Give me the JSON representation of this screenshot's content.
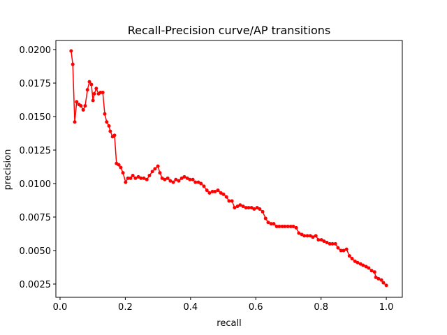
{
  "chart_data": {
    "type": "line",
    "title": "Recall-Precision curve/AP transitions",
    "x_label": "recall",
    "y_label": "precision",
    "series": [
      {
        "color": "#ff0000",
        "x": [
          0.034,
          0.039,
          0.045,
          0.051,
          0.058,
          0.064,
          0.071,
          0.077,
          0.084,
          0.09,
          0.096,
          0.101,
          0.105,
          0.111,
          0.118,
          0.124,
          0.131,
          0.137,
          0.143,
          0.15,
          0.154,
          0.161,
          0.167,
          0.173,
          0.18,
          0.186,
          0.193,
          0.201,
          0.208,
          0.216,
          0.223,
          0.231,
          0.24,
          0.248,
          0.257,
          0.266,
          0.274,
          0.283,
          0.291,
          0.3,
          0.306,
          0.313,
          0.321,
          0.33,
          0.338,
          0.347,
          0.355,
          0.364,
          0.373,
          0.381,
          0.39,
          0.398,
          0.407,
          0.415,
          0.424,
          0.432,
          0.441,
          0.45,
          0.458,
          0.467,
          0.475,
          0.484,
          0.493,
          0.501,
          0.51,
          0.518,
          0.527,
          0.535,
          0.544,
          0.552,
          0.561,
          0.57,
          0.578,
          0.587,
          0.595,
          0.604,
          0.612,
          0.621,
          0.63,
          0.638,
          0.647,
          0.655,
          0.664,
          0.672,
          0.681,
          0.689,
          0.698,
          0.707,
          0.715,
          0.724,
          0.732,
          0.741,
          0.749,
          0.758,
          0.767,
          0.775,
          0.784,
          0.792,
          0.801,
          0.809,
          0.818,
          0.827,
          0.835,
          0.844,
          0.852,
          0.861,
          0.869,
          0.878,
          0.887,
          0.895,
          0.904,
          0.912,
          0.921,
          0.929,
          0.938,
          0.946,
          0.955,
          0.964,
          0.968,
          0.976,
          0.985,
          0.991,
          1.0
        ],
        "values": [
          0.0199,
          0.0189,
          0.0146,
          0.0161,
          0.0159,
          0.0158,
          0.0155,
          0.0158,
          0.017,
          0.0176,
          0.0174,
          0.0162,
          0.0167,
          0.0171,
          0.0167,
          0.0168,
          0.0168,
          0.0152,
          0.0146,
          0.0143,
          0.0139,
          0.0135,
          0.0136,
          0.0115,
          0.0114,
          0.0112,
          0.0108,
          0.0101,
          0.0104,
          0.0104,
          0.0106,
          0.0104,
          0.0105,
          0.0104,
          0.0104,
          0.0103,
          0.0106,
          0.0109,
          0.0111,
          0.0113,
          0.0108,
          0.0104,
          0.0103,
          0.0104,
          0.0102,
          0.0101,
          0.0103,
          0.0102,
          0.0104,
          0.0105,
          0.0104,
          0.0103,
          0.0103,
          0.0101,
          0.0101,
          0.01,
          0.0098,
          0.0095,
          0.0093,
          0.0094,
          0.0094,
          0.0095,
          0.0093,
          0.0092,
          0.009,
          0.0087,
          0.0087,
          0.0082,
          0.0083,
          0.0084,
          0.0083,
          0.0082,
          0.0082,
          0.0082,
          0.0081,
          0.0082,
          0.0081,
          0.0079,
          0.0074,
          0.0071,
          0.007,
          0.007,
          0.0068,
          0.0068,
          0.0068,
          0.0068,
          0.0068,
          0.0068,
          0.0068,
          0.0067,
          0.0063,
          0.0062,
          0.0061,
          0.0061,
          0.0061,
          0.006,
          0.0061,
          0.0058,
          0.0058,
          0.0057,
          0.0056,
          0.0055,
          0.0055,
          0.0055,
          0.0052,
          0.005,
          0.005,
          0.0051,
          0.0046,
          0.0044,
          0.0042,
          0.0041,
          0.004,
          0.0039,
          0.0038,
          0.0037,
          0.0035,
          0.0034,
          0.003,
          0.0029,
          0.0028,
          0.0026,
          0.0024
        ]
      }
    ],
    "xlim": [
      -0.0128,
      1.049
    ],
    "ylim": [
      0.00151,
      0.02068
    ],
    "xticks": [
      {
        "value": 0,
        "label": "0.0"
      },
      0.2,
      0.4,
      0.6,
      0.8,
      {
        "value": 1,
        "label": "1.0"
      }
    ],
    "yticks": [
      0.0025,
      {
        "value": 0.005,
        "label": "0.0050"
      },
      0.0075,
      {
        "value": 0.01,
        "label": "0.0100"
      },
      0.0125,
      {
        "value": 0.015,
        "label": "0.0150"
      },
      0.0175,
      {
        "value": 0.02,
        "label": "0.0200"
      }
    ]
  }
}
